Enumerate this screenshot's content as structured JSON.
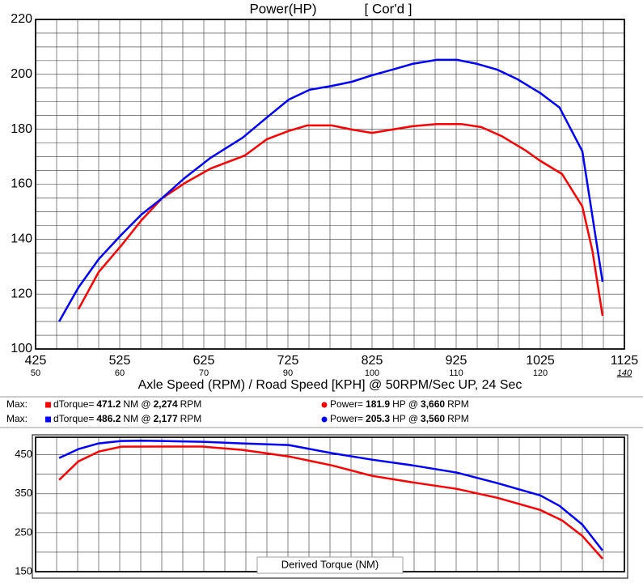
{
  "chart_data": [
    {
      "type": "line",
      "title": "Power(HP)",
      "subtitle": "[ Cor'd ]",
      "x_label": "Axle Speed (RPM) / Road Speed [KPH] @ 50RPM/Sec UP, 24 Sec",
      "xlim": [
        425,
        1125
      ],
      "xticks": [
        425,
        525,
        625,
        725,
        825,
        925,
        1025,
        1125
      ],
      "x2_labels": [
        "50",
        "60",
        "70",
        "90",
        "100",
        "110",
        "120",
        "140"
      ],
      "ylim": [
        100,
        220
      ],
      "yticks": [
        100,
        120,
        140,
        160,
        180,
        200,
        220
      ],
      "grid": true,
      "series": [
        {
          "color": "#ff0000",
          "x": [
            476,
            500,
            527,
            551,
            575,
            604,
            633,
            674,
            700,
            726,
            748,
            777,
            801,
            825,
            849,
            873,
            902,
            931,
            955,
            979,
            1008,
            1024,
            1051,
            1075,
            1087,
            1099
          ],
          "values": [
            114.5,
            128.0,
            137.7,
            146.9,
            154.8,
            160.7,
            165.7,
            170.5,
            176.4,
            179.4,
            181.4,
            181.4,
            179.9,
            178.7,
            179.9,
            181.1,
            181.9,
            181.9,
            180.8,
            177.5,
            172.2,
            168.7,
            163.7,
            151.9,
            135.7,
            112.1
          ]
        },
        {
          "color": "#0000ff",
          "x": [
            453,
            476,
            500,
            527,
            551,
            575,
            602,
            633,
            671,
            700,
            726,
            751,
            777,
            801,
            825,
            849,
            873,
            902,
            926,
            950,
            974,
            998,
            1025,
            1048,
            1075,
            1099
          ],
          "values": [
            110.0,
            122.4,
            132.7,
            141.6,
            149.0,
            154.8,
            162.2,
            169.6,
            176.9,
            184.3,
            190.8,
            194.4,
            195.8,
            197.3,
            199.7,
            201.7,
            203.8,
            205.3,
            205.3,
            203.8,
            201.7,
            198.2,
            193.2,
            187.9,
            172.0,
            124.5
          ]
        }
      ]
    },
    {
      "type": "line",
      "title": "Derived Torque (NM)",
      "xlim": [
        425,
        1125
      ],
      "xticks": [
        425,
        525,
        625,
        725,
        825,
        925,
        1025,
        1125
      ],
      "ylim": [
        150,
        495
      ],
      "yticks": [
        150,
        250,
        350,
        450
      ],
      "grid": true,
      "series": [
        {
          "color": "#ff0000",
          "x": [
            453,
            476,
            500,
            527,
            575,
            623,
            671,
            726,
            777,
            825,
            873,
            926,
            974,
            1025,
            1051,
            1075,
            1099
          ],
          "values": [
            385.4,
            433.3,
            458.3,
            470.8,
            471.2,
            471.0,
            462.5,
            445.8,
            422.9,
            395.8,
            379.2,
            362.5,
            339.6,
            308.3,
            281.3,
            241.7,
            183.3
          ]
        },
        {
          "color": "#0000ff",
          "x": [
            453,
            476,
            500,
            527,
            551,
            575,
            623,
            671,
            726,
            777,
            825,
            873,
            926,
            974,
            1025,
            1048,
            1075,
            1099
          ],
          "values": [
            441.7,
            464.6,
            479.2,
            485.5,
            486.2,
            485.5,
            483.3,
            479.2,
            475.0,
            454.2,
            437.5,
            422.9,
            404.2,
            377.1,
            345.8,
            318.8,
            270.8,
            204.2
          ]
        }
      ]
    }
  ],
  "summary": {
    "rows": [
      {
        "label": "Max:",
        "color": "#ff0000",
        "torque_label": "dTorque=",
        "torque": "471.2",
        "torque_unit": "NM @",
        "torque_rpm": "2,274",
        "torque_rpm_unit": "RPM",
        "power_label": "Power=",
        "power": "181.9",
        "power_unit": "HP @",
        "power_rpm": "3,660",
        "power_rpm_unit": "RPM"
      },
      {
        "label": "Max:",
        "color": "#0000ff",
        "torque_label": "dTorque=",
        "torque": "486.2",
        "torque_unit": "NM @",
        "torque_rpm": "2,177",
        "torque_rpm_unit": "RPM",
        "power_label": "Power=",
        "power": "205.3",
        "power_unit": "HP @",
        "power_rpm": "3,560",
        "power_rpm_unit": "RPM"
      }
    ]
  }
}
